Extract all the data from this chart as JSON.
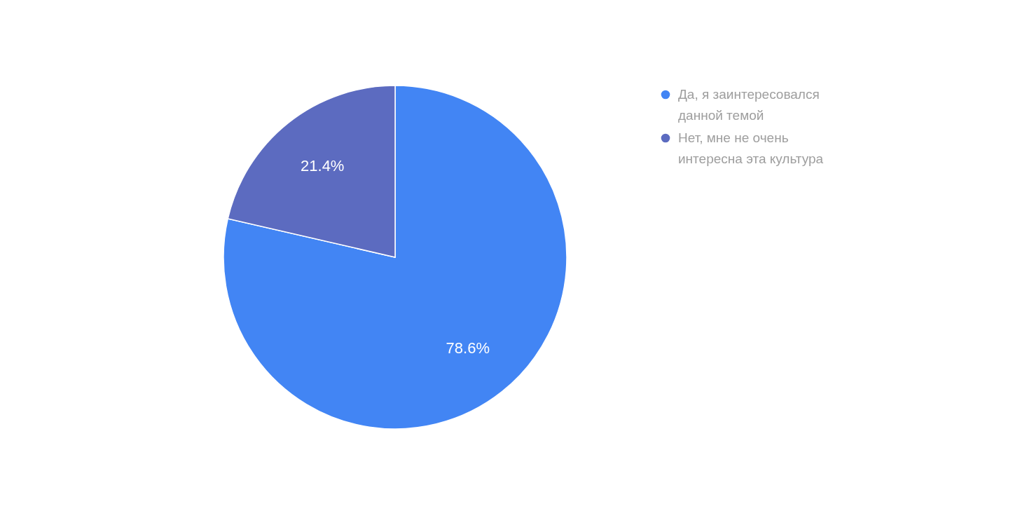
{
  "chart_data": {
    "type": "pie",
    "categories": [
      "Да, я заинтересовался данной темой",
      "Нет, мне не очень интересна эта культура"
    ],
    "values": [
      78.6,
      21.4
    ],
    "colors": [
      "#4285f4",
      "#5c6bc0"
    ],
    "value_labels": [
      "78.6%",
      "21.4%"
    ],
    "legend": "right"
  }
}
